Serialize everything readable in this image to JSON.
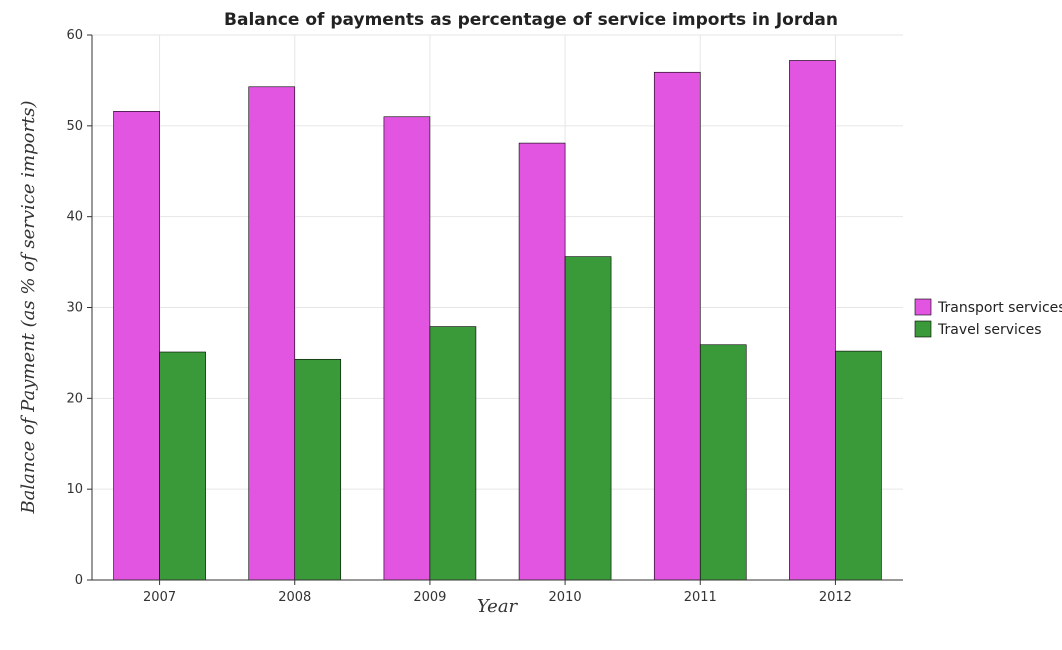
{
  "chart_data": {
    "type": "bar",
    "title": "Balance of payments as percentage of service imports in Jordan",
    "xlabel": "Year",
    "ylabel": "Balance of Payment (as % of service imports)",
    "categories": [
      "2007",
      "2008",
      "2009",
      "2010",
      "2011",
      "2012"
    ],
    "series": [
      {
        "name": "Transport services",
        "color": "#e155e1",
        "values": [
          51.6,
          54.3,
          51.0,
          48.1,
          55.9,
          57.2
        ]
      },
      {
        "name": "Travel services",
        "color": "#3a9a3a",
        "values": [
          25.1,
          24.3,
          27.9,
          35.6,
          25.9,
          25.2
        ]
      }
    ],
    "ylim": [
      0,
      60
    ],
    "yticks": [
      0,
      10,
      20,
      30,
      40,
      50,
      60
    ],
    "grid": true,
    "legend_position": "right"
  }
}
